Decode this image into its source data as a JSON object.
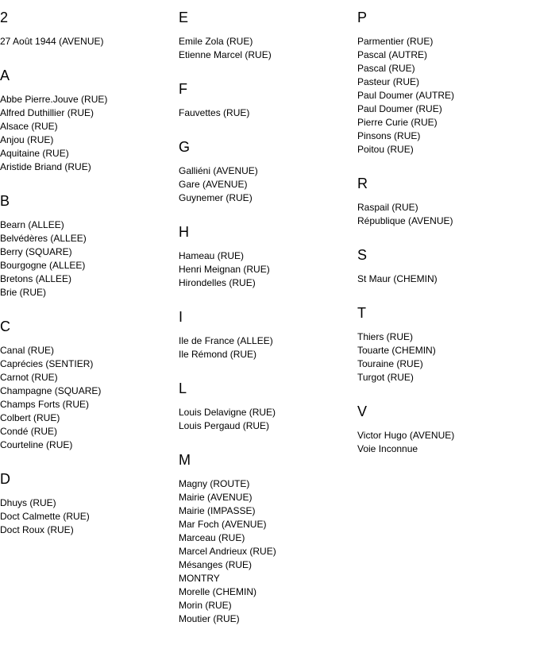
{
  "columns": [
    [
      {
        "letter": "2",
        "items": [
          "27 Août 1944 (AVENUE)"
        ]
      },
      {
        "letter": "A",
        "items": [
          "Abbe Pierre.Jouve (RUE)",
          "Alfred Duthillier (RUE)",
          "Alsace (RUE)",
          "Anjou (RUE)",
          "Aquitaine (RUE)",
          "Aristide Briand (RUE)"
        ]
      },
      {
        "letter": "B",
        "items": [
          "Bearn (ALLEE)",
          "Belvédères (ALLEE)",
          "Berry (SQUARE)",
          "Bourgogne (ALLEE)",
          "Bretons (ALLEE)",
          "Brie (RUE)"
        ]
      },
      {
        "letter": "C",
        "items": [
          "Canal (RUE)",
          "Caprécies (SENTIER)",
          "Carnot (RUE)",
          "Champagne (SQUARE)",
          "Champs Forts (RUE)",
          "Colbert (RUE)",
          "Condé (RUE)",
          "Courteline (RUE)"
        ]
      },
      {
        "letter": "D",
        "items": [
          "Dhuys (RUE)",
          "Doct Calmette (RUE)",
          "Doct Roux (RUE)"
        ]
      }
    ],
    [
      {
        "letter": "E",
        "items": [
          "Emile Zola (RUE)",
          "Etienne Marcel (RUE)"
        ]
      },
      {
        "letter": "F",
        "items": [
          "Fauvettes (RUE)"
        ]
      },
      {
        "letter": "G",
        "items": [
          "Galliéni (AVENUE)",
          "Gare (AVENUE)",
          "Guynemer (RUE)"
        ]
      },
      {
        "letter": "H",
        "items": [
          "Hameau (RUE)",
          "Henri Meignan (RUE)",
          "Hirondelles (RUE)"
        ]
      },
      {
        "letter": "I",
        "items": [
          "Ile de France (ALLEE)",
          "Ile Rémond (RUE)"
        ]
      },
      {
        "letter": "L",
        "items": [
          "Louis Delavigne (RUE)",
          "Louis Pergaud (RUE)"
        ]
      },
      {
        "letter": "M",
        "items": [
          "Magny (ROUTE)",
          "Mairie (AVENUE)",
          "Mairie (IMPASSE)",
          "Mar Foch (AVENUE)",
          "Marceau (RUE)",
          "Marcel Andrieux (RUE)",
          "Mésanges (RUE)",
          "MONTRY",
          "Morelle (CHEMIN)",
          "Morin (RUE)",
          "Moutier (RUE)"
        ]
      }
    ],
    [
      {
        "letter": "P",
        "items": [
          "Parmentier (RUE)",
          "Pascal (AUTRE)",
          "Pascal (RUE)",
          "Pasteur (RUE)",
          "Paul Doumer (AUTRE)",
          "Paul Doumer (RUE)",
          "Pierre Curie (RUE)",
          "Pinsons (RUE)",
          "Poitou (RUE)"
        ]
      },
      {
        "letter": "R",
        "items": [
          "Raspail (RUE)",
          "République (AVENUE)"
        ]
      },
      {
        "letter": "S",
        "items": [
          "St Maur (CHEMIN)"
        ]
      },
      {
        "letter": "T",
        "items": [
          "Thiers (RUE)",
          "Touarte (CHEMIN)",
          "Touraine (RUE)",
          "Turgot (RUE)"
        ]
      },
      {
        "letter": "V",
        "items": [
          "Victor Hugo (AVENUE)",
          "Voie Inconnue"
        ]
      }
    ]
  ]
}
